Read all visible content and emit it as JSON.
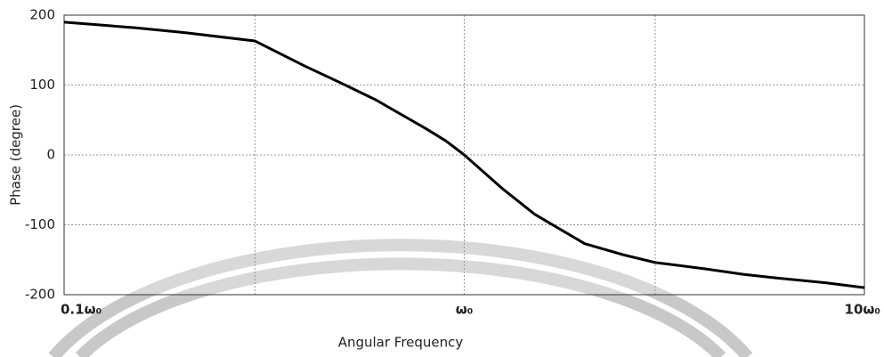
{
  "chart_data": {
    "type": "line",
    "xlabel": "Angular Frequency",
    "ylabel": "Phase (degree)",
    "x": [
      0.1,
      0.15,
      0.2,
      0.3,
      0.4,
      0.5,
      0.6,
      0.7,
      0.8,
      0.9,
      1,
      1.25,
      1.5,
      2,
      2.5,
      3,
      4,
      5,
      6,
      8,
      10
    ],
    "values": [
      190,
      182,
      175,
      163,
      127,
      101,
      79,
      57,
      38,
      20,
      0,
      -49,
      -85,
      -127,
      -143,
      -154,
      -163,
      -171,
      -176,
      -183,
      -190
    ],
    "color": "#000000",
    "xlim": [
      0.1,
      10
    ],
    "xscale": "log",
    "xticks": [
      {
        "value": 0.1,
        "label": "0.1ω₀"
      },
      {
        "value": 1,
        "label": "ω₀"
      },
      {
        "value": 10,
        "label": "10ω₀"
      }
    ],
    "xgrid": [
      0.3,
      3
    ],
    "ylim": [
      -200,
      200
    ],
    "yticks": [
      -200,
      -100,
      0,
      100,
      200
    ],
    "grid": true
  }
}
